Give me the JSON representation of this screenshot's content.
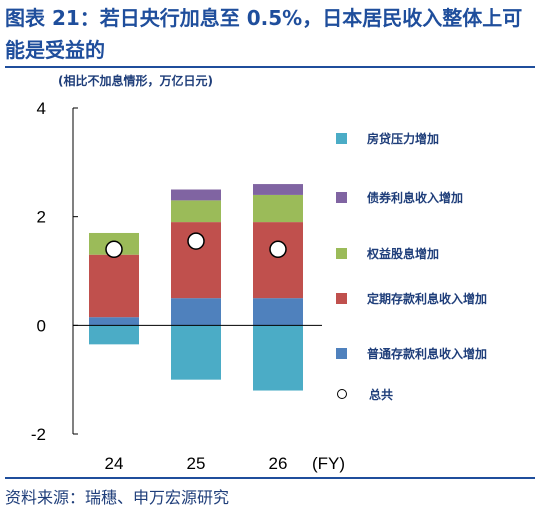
{
  "header": {
    "title": "图表 21：若日央行加息至 0.5%，日本居民收入整体上可能是受益的",
    "unit": "(相比不加息情形，万亿日元)"
  },
  "footer": {
    "source": "资料来源：瑞穗、申万宏源研究"
  },
  "chart_data": {
    "type": "bar",
    "stacked": true,
    "categories": [
      "24",
      "25",
      "26"
    ],
    "x_suffix": "(FY)",
    "ylim": [
      -2,
      4
    ],
    "yticks": [
      -2,
      0,
      2,
      4
    ],
    "grid": false,
    "legend_position": "right",
    "series": [
      {
        "name": "房贷压力增加",
        "color": "#4bacc6",
        "values": [
          -0.35,
          -1.0,
          -1.2
        ]
      },
      {
        "name": "债券利息收入增加",
        "color": "#8064a2",
        "values": [
          0.0,
          0.2,
          0.2
        ]
      },
      {
        "name": "权益股息增加",
        "color": "#9bbb59",
        "values": [
          0.4,
          0.4,
          0.5
        ]
      },
      {
        "name": "定期存款利息收入增加",
        "color": "#c0504d",
        "values": [
          1.15,
          1.4,
          1.4
        ]
      },
      {
        "name": "普通存款利息收入增加",
        "color": "#4f81bd",
        "values": [
          0.15,
          0.5,
          0.5
        ]
      }
    ],
    "total": {
      "name": "总共",
      "values": [
        1.4,
        1.55,
        1.4
      ]
    },
    "stack_order_positive": [
      4,
      3,
      2,
      1
    ],
    "stack_order_negative": [
      0
    ]
  }
}
